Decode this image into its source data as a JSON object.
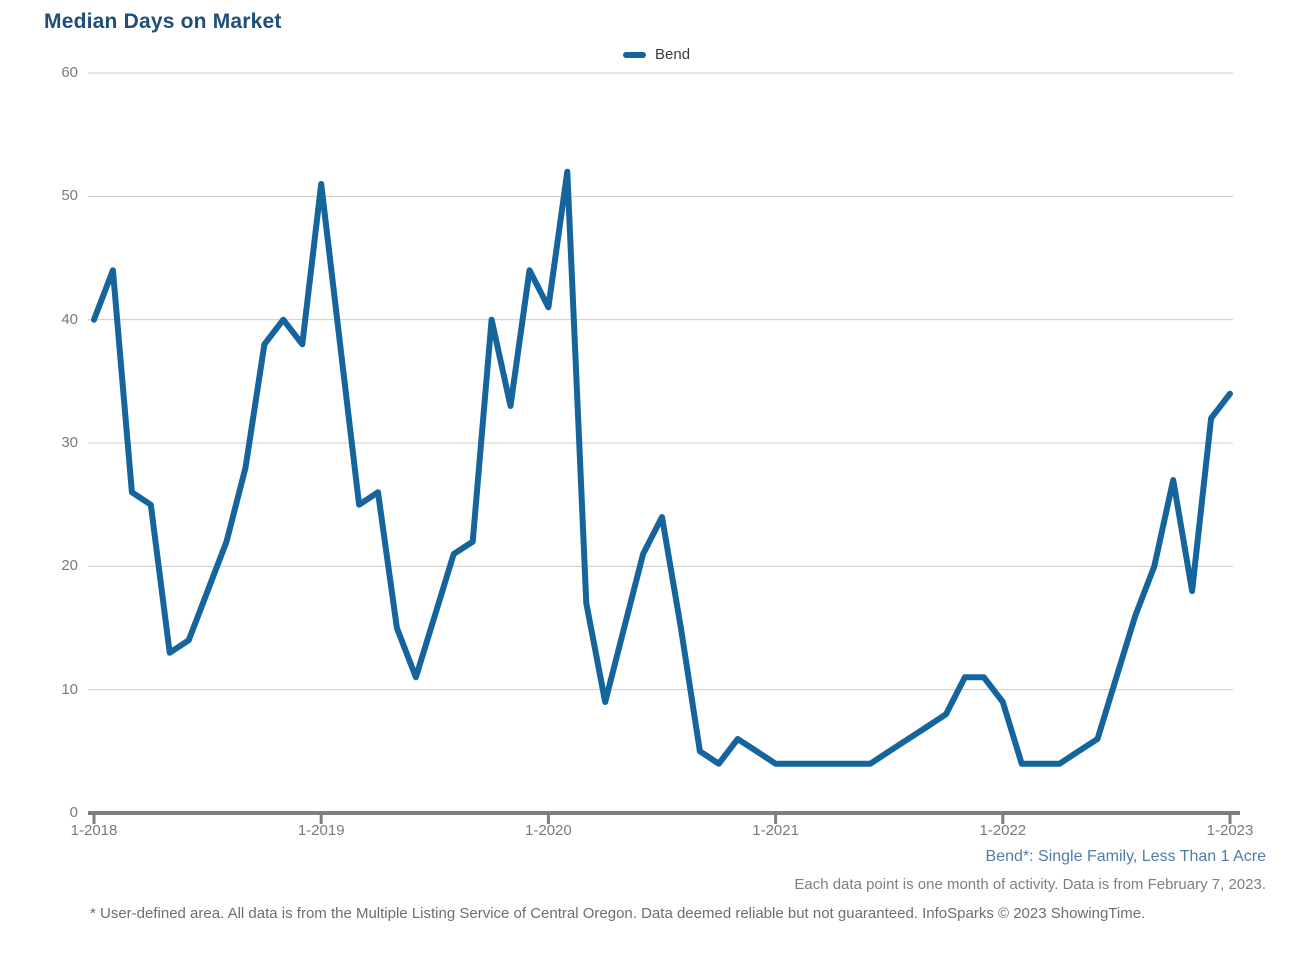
{
  "title": "Median Days on Market",
  "legend": {
    "label": "Bend"
  },
  "colors": {
    "title": "#1E4E79",
    "line": "#15659C",
    "legend_text": "#3C3C3C",
    "axis_text": "#7A7A7A",
    "gridline": "#CCCCCC",
    "axis_line": "#7F7F7F",
    "footnote_blue": "#4E7EA8",
    "footnote_gray": "#7F7F7F",
    "disclaimer_gray": "#6E6E6E"
  },
  "chart_data": {
    "type": "line",
    "title": "Median Days on Market",
    "x_interval": "monthly",
    "x_start": "1-2018",
    "x_end": "1-2023",
    "xticks": [
      "1-2018",
      "1-2019",
      "1-2020",
      "1-2021",
      "1-2022",
      "1-2023"
    ],
    "yticks": [
      0,
      10,
      20,
      30,
      40,
      50,
      60
    ],
    "ylim": [
      0,
      60
    ],
    "xlabel": "",
    "ylabel": "",
    "grid": "horizontal",
    "legend_position": "top-center",
    "line_color": "#15659C",
    "series": [
      {
        "name": "Bend",
        "values": [
          40,
          44,
          26,
          25,
          13,
          14,
          18,
          22,
          28,
          38,
          40,
          38,
          51,
          38,
          25,
          26,
          15,
          11,
          16,
          21,
          22,
          40,
          33,
          44,
          41,
          52,
          17,
          9,
          15,
          21,
          24,
          15,
          5,
          4,
          6,
          5,
          4,
          4,
          4,
          4,
          4,
          4,
          5,
          6,
          7,
          8,
          11,
          11,
          9,
          4,
          4,
          4,
          5,
          6,
          11,
          16,
          20,
          27,
          18,
          32,
          34
        ]
      }
    ]
  },
  "footnotes": {
    "series_definition": "Bend*: Single Family, Less Than 1 Acre",
    "data_note": "Each data point is one month of activity. Data is from February 7, 2023.",
    "disclaimer": "* User-defined area. All data is from the Multiple Listing Service of Central Oregon. Data deemed reliable but not guaranteed. InfoSparks © 2023 ShowingTime."
  }
}
